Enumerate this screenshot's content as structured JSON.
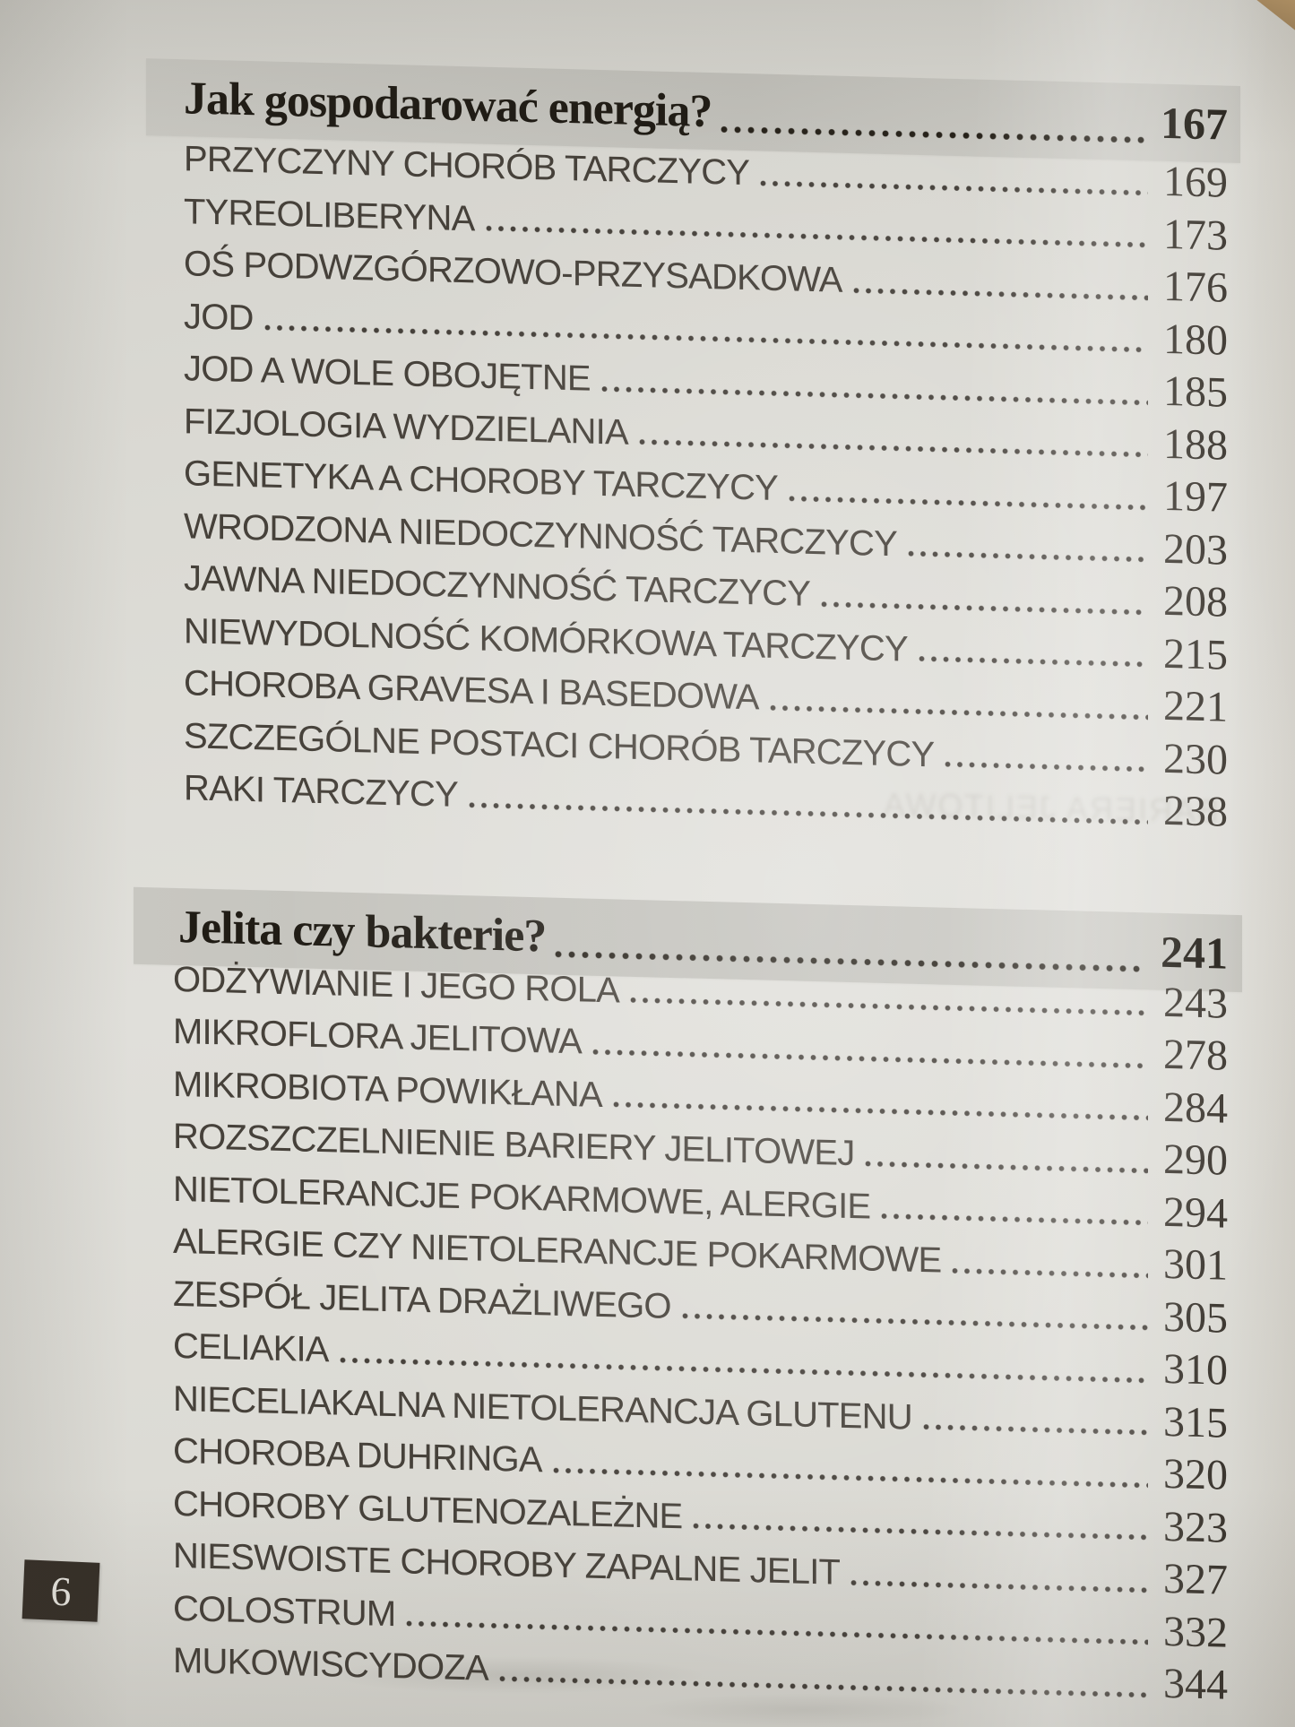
{
  "toc": {
    "sections": [
      {
        "title": "Jak gospodarować energią?",
        "page": "167",
        "entries": [
          {
            "label": "PRZYCZYNY CHORÓB TARCZYCY",
            "page": "169"
          },
          {
            "label": "TYREOLIBERYNA",
            "page": "173"
          },
          {
            "label": "OŚ PODWZGÓRZOWO-PRZYSADKOWA",
            "page": "176"
          },
          {
            "label": "JOD",
            "page": "180"
          },
          {
            "label": "JOD A WOLE OBOJĘTNE",
            "page": "185"
          },
          {
            "label": "FIZJOLOGIA WYDZIELANIA",
            "page": "188"
          },
          {
            "label": "GENETYKA A CHOROBY TARCZYCY",
            "page": "197"
          },
          {
            "label": "WRODZONA NIEDOCZYNNOŚĆ TARCZYCY",
            "page": "203"
          },
          {
            "label": "JAWNA NIEDOCZYNNOŚĆ TARCZYCY",
            "page": "208"
          },
          {
            "label": "NIEWYDOLNOŚĆ KOMÓRKOWA TARCZYCY",
            "page": "215"
          },
          {
            "label": "CHOROBA GRAVESA I BASEDOWA",
            "page": "221"
          },
          {
            "label": "SZCZEGÓLNE POSTACI CHORÓB TARCZYCY",
            "page": "230"
          },
          {
            "label": "RAKI TARCZYCY",
            "page": "238"
          }
        ]
      },
      {
        "title": "Jelita czy bakterie?",
        "page": "241",
        "entries": [
          {
            "label": "ODŻYWIANIE I JEGO ROLA",
            "page": "243"
          },
          {
            "label": "MIKROFLORA JELITOWA",
            "page": "278"
          },
          {
            "label": "MIKROBIOTA POWIKŁANA",
            "page": "284"
          },
          {
            "label": "ROZSZCZELNIENIE BARIERY JELITOWEJ",
            "page": "290"
          },
          {
            "label": "NIETOLERANCJE POKARMOWE, ALERGIE",
            "page": "294"
          },
          {
            "label": "ALERGIE CZY NIETOLERANCJE POKARMOWE",
            "page": "301"
          },
          {
            "label": "ZESPÓŁ JELITA DRAŻLIWEGO",
            "page": "305"
          },
          {
            "label": "CELIAKIA",
            "page": "310"
          },
          {
            "label": "NIECELIAKALNA NIETOLERANCJA GLUTENU",
            "page": "315"
          },
          {
            "label": "CHOROBA DUHRINGA",
            "page": "320"
          },
          {
            "label": "CHOROBY GLUTENOZALEŻNE",
            "page": "323"
          },
          {
            "label": "NIESWOISTE CHOROBY ZAPALNE JELIT",
            "page": "327"
          },
          {
            "label": "COLOSTRUM",
            "page": "332"
          },
          {
            "label": "MUKOWISCYDOZA",
            "page": "344"
          }
        ]
      }
    ]
  },
  "footer": {
    "page_number": "6"
  },
  "ghost": {
    "mirrored_text": "BARIERA JELITOWA"
  },
  "colors": {
    "paper": "#dbdad4",
    "highlight_bar": "#c6c5bf",
    "heading_ink": "#201c15",
    "entry_ink": "#46413a",
    "number_ink": "#3b362f",
    "page_box_bg": "#362f28",
    "page_box_text": "#eceae4"
  }
}
